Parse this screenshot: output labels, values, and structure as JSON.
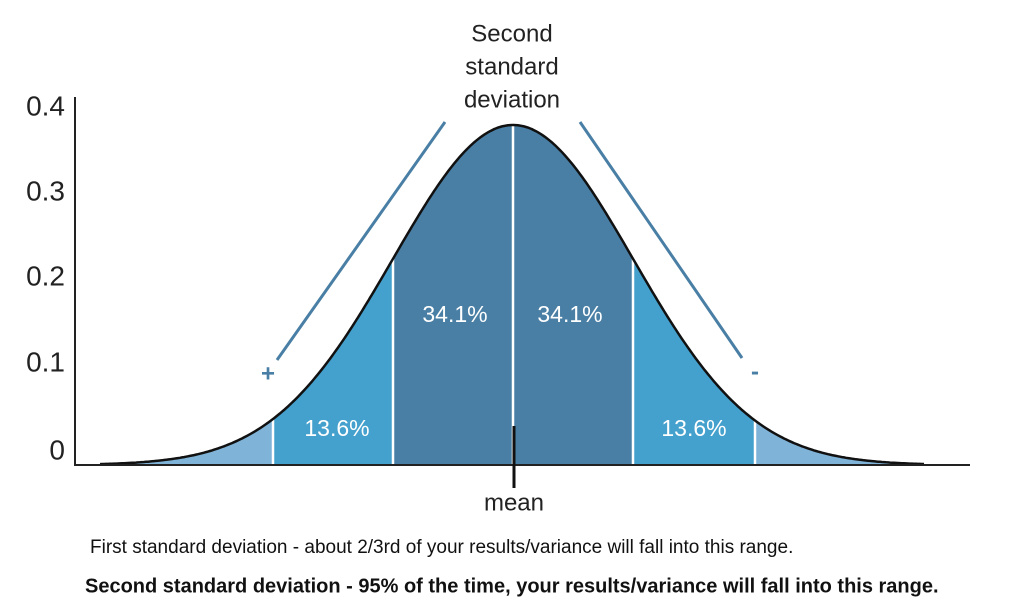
{
  "y_axis": {
    "ticks": [
      "0.4",
      "0.3",
      "0.2",
      "0.1",
      "0"
    ]
  },
  "regions": {
    "left": "13.6%",
    "center_left": "34.1%",
    "center_right": "34.1%",
    "right": "13.6%"
  },
  "annotation": {
    "lines": [
      "Second",
      "standard",
      "deviation"
    ],
    "plus": "+",
    "minus": "-"
  },
  "mean_label": "mean",
  "captions": [
    "First standard deviation - about 2/3rd of your results/variance will fall into this range.",
    "Second standard deviation - 95% of the time, your results/variance will fall into this range."
  ]
}
